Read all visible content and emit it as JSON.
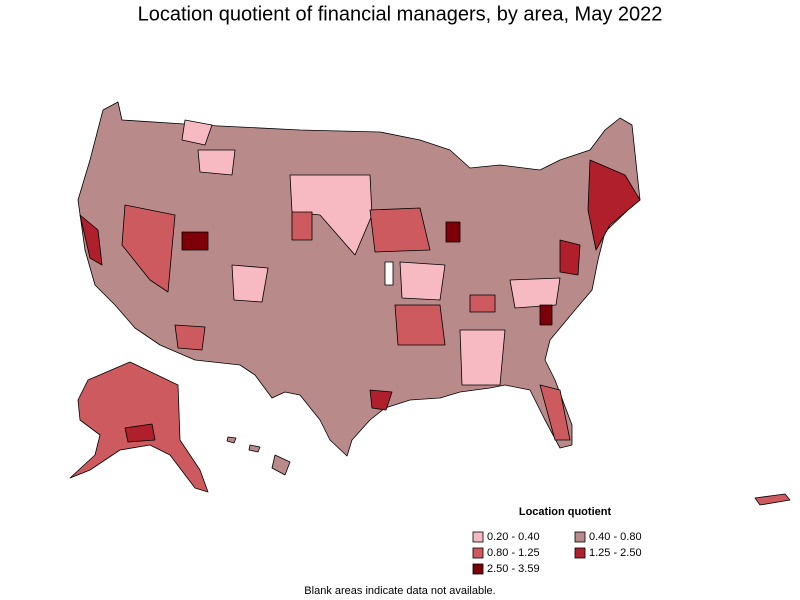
{
  "title": "Location quotient of financial managers, by area, May 2022",
  "legend": {
    "title": "Location quotient",
    "items": [
      {
        "label": "0.20 - 0.40",
        "color": "#f7b9c2"
      },
      {
        "label": "0.40 - 0.80",
        "color": "#b98a8a"
      },
      {
        "label": "0.80 - 1.25",
        "color": "#cd5a5f"
      },
      {
        "label": "1.25 - 2.50",
        "color": "#b0202c"
      },
      {
        "label": "2.50 - 3.59",
        "color": "#7d0008"
      }
    ]
  },
  "note": "Blank areas indicate data not available."
}
